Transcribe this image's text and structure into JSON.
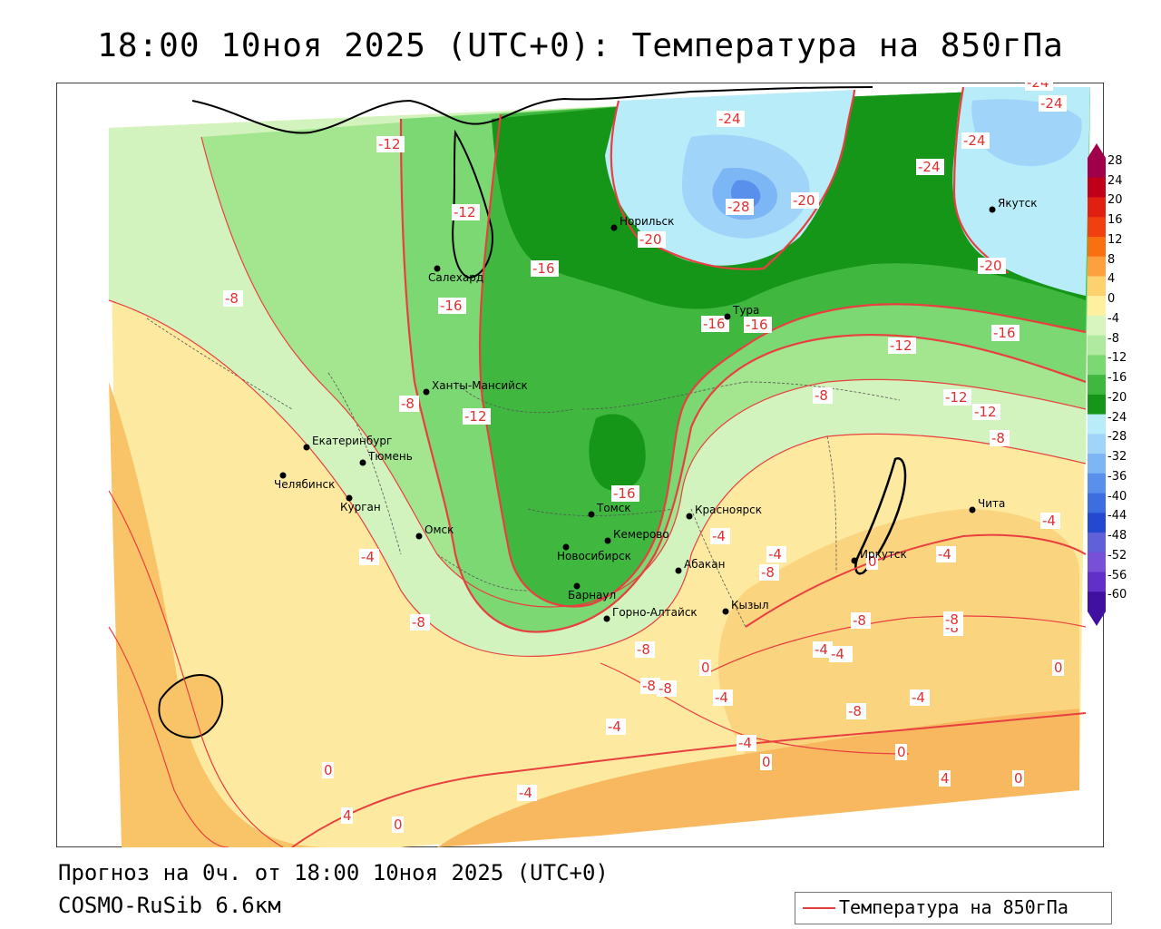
{
  "title": "18:00 10ноя 2025 (UTC+0): Температура на 850гПа",
  "footer": {
    "forecast": "Прогноз на 0ч. от 18:00 10ноя 2025 (UTC+0)",
    "model": "COSMO-RuSib 6.6км"
  },
  "legend": {
    "label": "Температура на 850гПа",
    "line_color": "#e04040"
  },
  "colorbar": {
    "ticks": [
      "28",
      "24",
      "20",
      "16",
      "12",
      "8",
      "4",
      "0",
      "-4",
      "-8",
      "-12",
      "-16",
      "-20",
      "-24",
      "-28",
      "-32",
      "-36",
      "-40",
      "-44",
      "-48",
      "-52",
      "-56",
      "-60"
    ],
    "colors": [
      "#a0004a",
      "#c00018",
      "#e02010",
      "#f04010",
      "#f87010",
      "#fca040",
      "#fdd070",
      "#fff0a0",
      "#d8f5c0",
      "#b0eaa0",
      "#7cd873",
      "#40b840",
      "#169618",
      "#b8ecf8",
      "#a0d4f8",
      "#7cb6f4",
      "#5890ec",
      "#3c6ee0",
      "#2448d0",
      "#6060d8",
      "#7850d8",
      "#6030c8",
      "#4010a0"
    ]
  },
  "cities": [
    {
      "name": "Норильск"
    },
    {
      "name": "Салехард"
    },
    {
      "name": "Тура"
    },
    {
      "name": "Якутск"
    },
    {
      "name": "Ханты-Мансийск"
    },
    {
      "name": "Екатеринбург"
    },
    {
      "name": "Тюмень"
    },
    {
      "name": "Челябинск"
    },
    {
      "name": "Курган"
    },
    {
      "name": "Омск"
    },
    {
      "name": "Новосибирск"
    },
    {
      "name": "Томск"
    },
    {
      "name": "Кемерово"
    },
    {
      "name": "Барнаул"
    },
    {
      "name": "Красноярск"
    },
    {
      "name": "Абакан"
    },
    {
      "name": "Горно-Алтайск"
    },
    {
      "name": "Кызыл"
    },
    {
      "name": "Иркутск"
    },
    {
      "name": "Чита"
    }
  ],
  "contour_labels": [
    "-12",
    "-12",
    "-16",
    "-16",
    "-20",
    "-24",
    "-24",
    "-24",
    "-24",
    "-24",
    "-28",
    "-20",
    "-20",
    "-16",
    "-16",
    "-16",
    "-12",
    "-12",
    "-12",
    "-8",
    "-8",
    "-8",
    "-12",
    "-16",
    "-8",
    "-4",
    "-4",
    "-4",
    "-4",
    "-8",
    "-8",
    "-8",
    "-8",
    "-8",
    "-4",
    "-4",
    "-4",
    "-4",
    "-4",
    "-8",
    "-4",
    "0",
    "0",
    "0",
    "0",
    "0",
    "0",
    "4",
    "4",
    "-8",
    "-4",
    "-4",
    "-4",
    "-8",
    "0",
    "0",
    "-8"
  ]
}
